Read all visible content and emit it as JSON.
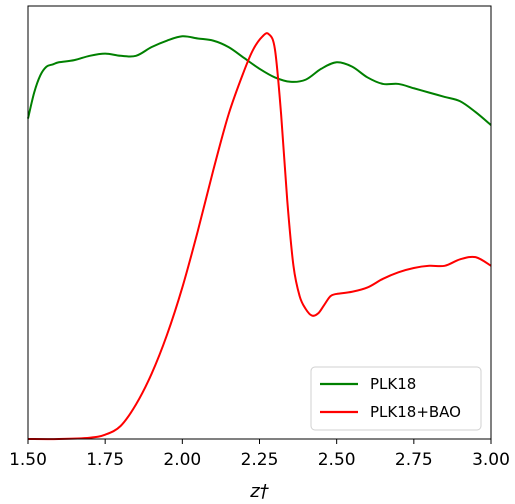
{
  "chart_data": {
    "type": "line",
    "title": "",
    "xlabel": "z†",
    "ylabel": "",
    "xlim": [
      1.5,
      3.0
    ],
    "ylim": [
      0,
      1
    ],
    "xticks": [
      "1.50",
      "1.75",
      "2.00",
      "2.25",
      "2.50",
      "2.75",
      "3.00"
    ],
    "yticks": [],
    "grid": false,
    "legend_position": "bottom-right",
    "series": [
      {
        "name": "PLK18",
        "color": "#008000",
        "x": [
          1.5,
          1.52,
          1.54,
          1.56,
          1.58,
          1.6,
          1.65,
          1.7,
          1.75,
          1.8,
          1.85,
          1.9,
          1.95,
          2.0,
          2.05,
          2.1,
          2.15,
          2.2,
          2.25,
          2.3,
          2.35,
          2.4,
          2.45,
          2.5,
          2.55,
          2.6,
          2.65,
          2.7,
          2.75,
          2.8,
          2.85,
          2.9,
          2.95,
          3.0
        ],
        "y": [
          0.74,
          0.8,
          0.84,
          0.86,
          0.865,
          0.87,
          0.875,
          0.885,
          0.89,
          0.885,
          0.885,
          0.905,
          0.92,
          0.93,
          0.925,
          0.92,
          0.905,
          0.88,
          0.855,
          0.835,
          0.825,
          0.83,
          0.855,
          0.87,
          0.86,
          0.835,
          0.82,
          0.82,
          0.81,
          0.8,
          0.79,
          0.78,
          0.755,
          0.725
        ]
      },
      {
        "name": "PLK18+BAO",
        "color": "#ff0000",
        "x": [
          1.5,
          1.6,
          1.7,
          1.75,
          1.8,
          1.85,
          1.9,
          1.95,
          2.0,
          2.05,
          2.1,
          2.15,
          2.2,
          2.23,
          2.26,
          2.28,
          2.3,
          2.32,
          2.34,
          2.36,
          2.38,
          2.4,
          2.42,
          2.44,
          2.46,
          2.48,
          2.5,
          2.55,
          2.6,
          2.65,
          2.7,
          2.75,
          2.8,
          2.85,
          2.9,
          2.95,
          3.0
        ],
        "y": [
          0.0,
          0.0,
          0.003,
          0.01,
          0.03,
          0.08,
          0.15,
          0.24,
          0.35,
          0.48,
          0.62,
          0.75,
          0.85,
          0.9,
          0.93,
          0.935,
          0.9,
          0.75,
          0.55,
          0.4,
          0.33,
          0.3,
          0.285,
          0.29,
          0.31,
          0.33,
          0.335,
          0.34,
          0.35,
          0.37,
          0.385,
          0.395,
          0.4,
          0.4,
          0.415,
          0.42,
          0.4
        ]
      }
    ]
  }
}
